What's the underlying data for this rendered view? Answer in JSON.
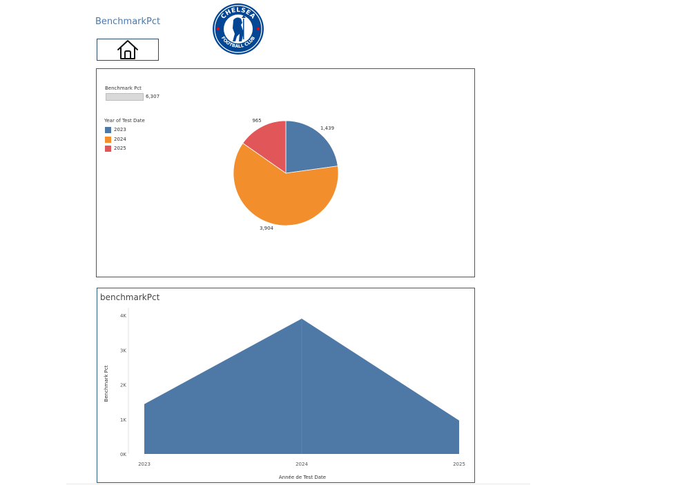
{
  "header": {
    "title": "BenchmarkPct"
  },
  "logo": {
    "top_text": "CHELSEA",
    "bottom_text": "FOOTBALL CLUB",
    "color": "#034694"
  },
  "colors": {
    "y2023": "#4e79a7",
    "y2024": "#f28e2b",
    "y2025": "#e15759"
  },
  "pie_panel": {
    "size_legend_title": "Benchmark Pct",
    "size_legend_value": "6,307",
    "color_legend_title": "Year of Test Date",
    "legend_items": [
      {
        "label": "2023",
        "color": "#4e79a7"
      },
      {
        "label": "2024",
        "color": "#f28e2b"
      },
      {
        "label": "2025",
        "color": "#e15759"
      }
    ]
  },
  "area_panel": {
    "title": "benchmarkPct"
  },
  "chart_data": [
    {
      "type": "pie",
      "title": "",
      "categories": [
        "2023",
        "2024",
        "2025"
      ],
      "values": [
        1439,
        3904,
        965
      ],
      "labels": [
        "1,439",
        "3,904",
        "965"
      ],
      "colors": [
        "#4e79a7",
        "#f28e2b",
        "#e15759"
      ],
      "legend": "left"
    },
    {
      "type": "area",
      "title": "benchmarkPct",
      "x": [
        "2023",
        "2024",
        "2025"
      ],
      "values": [
        1439,
        3904,
        965
      ],
      "xlabel": "Année de Test Date",
      "ylabel": "Benchmark Pct",
      "ylim": [
        0,
        4000
      ],
      "yticks": [
        0,
        1000,
        2000,
        3000,
        4000
      ],
      "ytick_labels": [
        "0K",
        "1K",
        "2K",
        "3K",
        "4K"
      ],
      "color": "#4e79a7",
      "grid": false
    }
  ]
}
